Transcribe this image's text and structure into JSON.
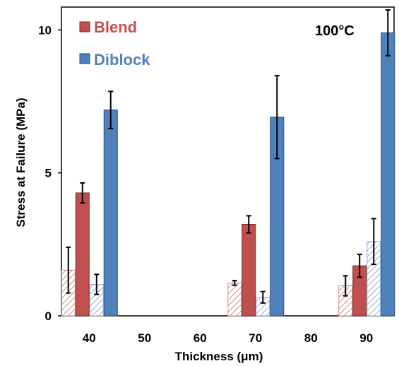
{
  "colors": {
    "blend": "#c0504d",
    "blend_stroke": "#7f2a28",
    "diblock": "#4f81bd",
    "diblock_stroke": "#2c4d75",
    "blend_hatch": "#d9898a",
    "diblock_hatch": "#8fb0d9"
  },
  "chart_data": {
    "type": "bar",
    "xlabel": "Thickness (μm)",
    "ylabel": "Stress at Failure (MPa)",
    "annotation": "100°C",
    "x_ticks": [
      "40",
      "50",
      "60",
      "70",
      "80",
      "90"
    ],
    "y_ticks": [
      "0",
      "5",
      "10"
    ],
    "ylim": [
      0,
      10.8
    ],
    "legend": [
      {
        "label": "Blend",
        "color": "#c0504d"
      },
      {
        "label": "Diblock",
        "color": "#4f81bd"
      }
    ],
    "series": [
      {
        "style": "blend-hatched",
        "x": [
          40,
          70,
          90
        ],
        "values": [
          1.6,
          1.15,
          1.05
        ],
        "errors": [
          0.8,
          0.08,
          0.35
        ]
      },
      {
        "name": "Blend",
        "style": "blend-solid",
        "x": [
          40,
          70,
          90
        ],
        "values": [
          4.3,
          3.2,
          1.75
        ],
        "errors": [
          0.35,
          0.3,
          0.4
        ]
      },
      {
        "style": "diblock-hatched",
        "x": [
          40,
          70,
          90
        ],
        "values": [
          1.1,
          0.65,
          2.6
        ],
        "errors": [
          0.35,
          0.2,
          0.8
        ]
      },
      {
        "name": "Diblock",
        "style": "diblock-solid",
        "x": [
          40,
          70,
          90
        ],
        "values": [
          7.2,
          6.95,
          9.9
        ],
        "errors": [
          0.65,
          1.45,
          0.8
        ]
      }
    ]
  }
}
